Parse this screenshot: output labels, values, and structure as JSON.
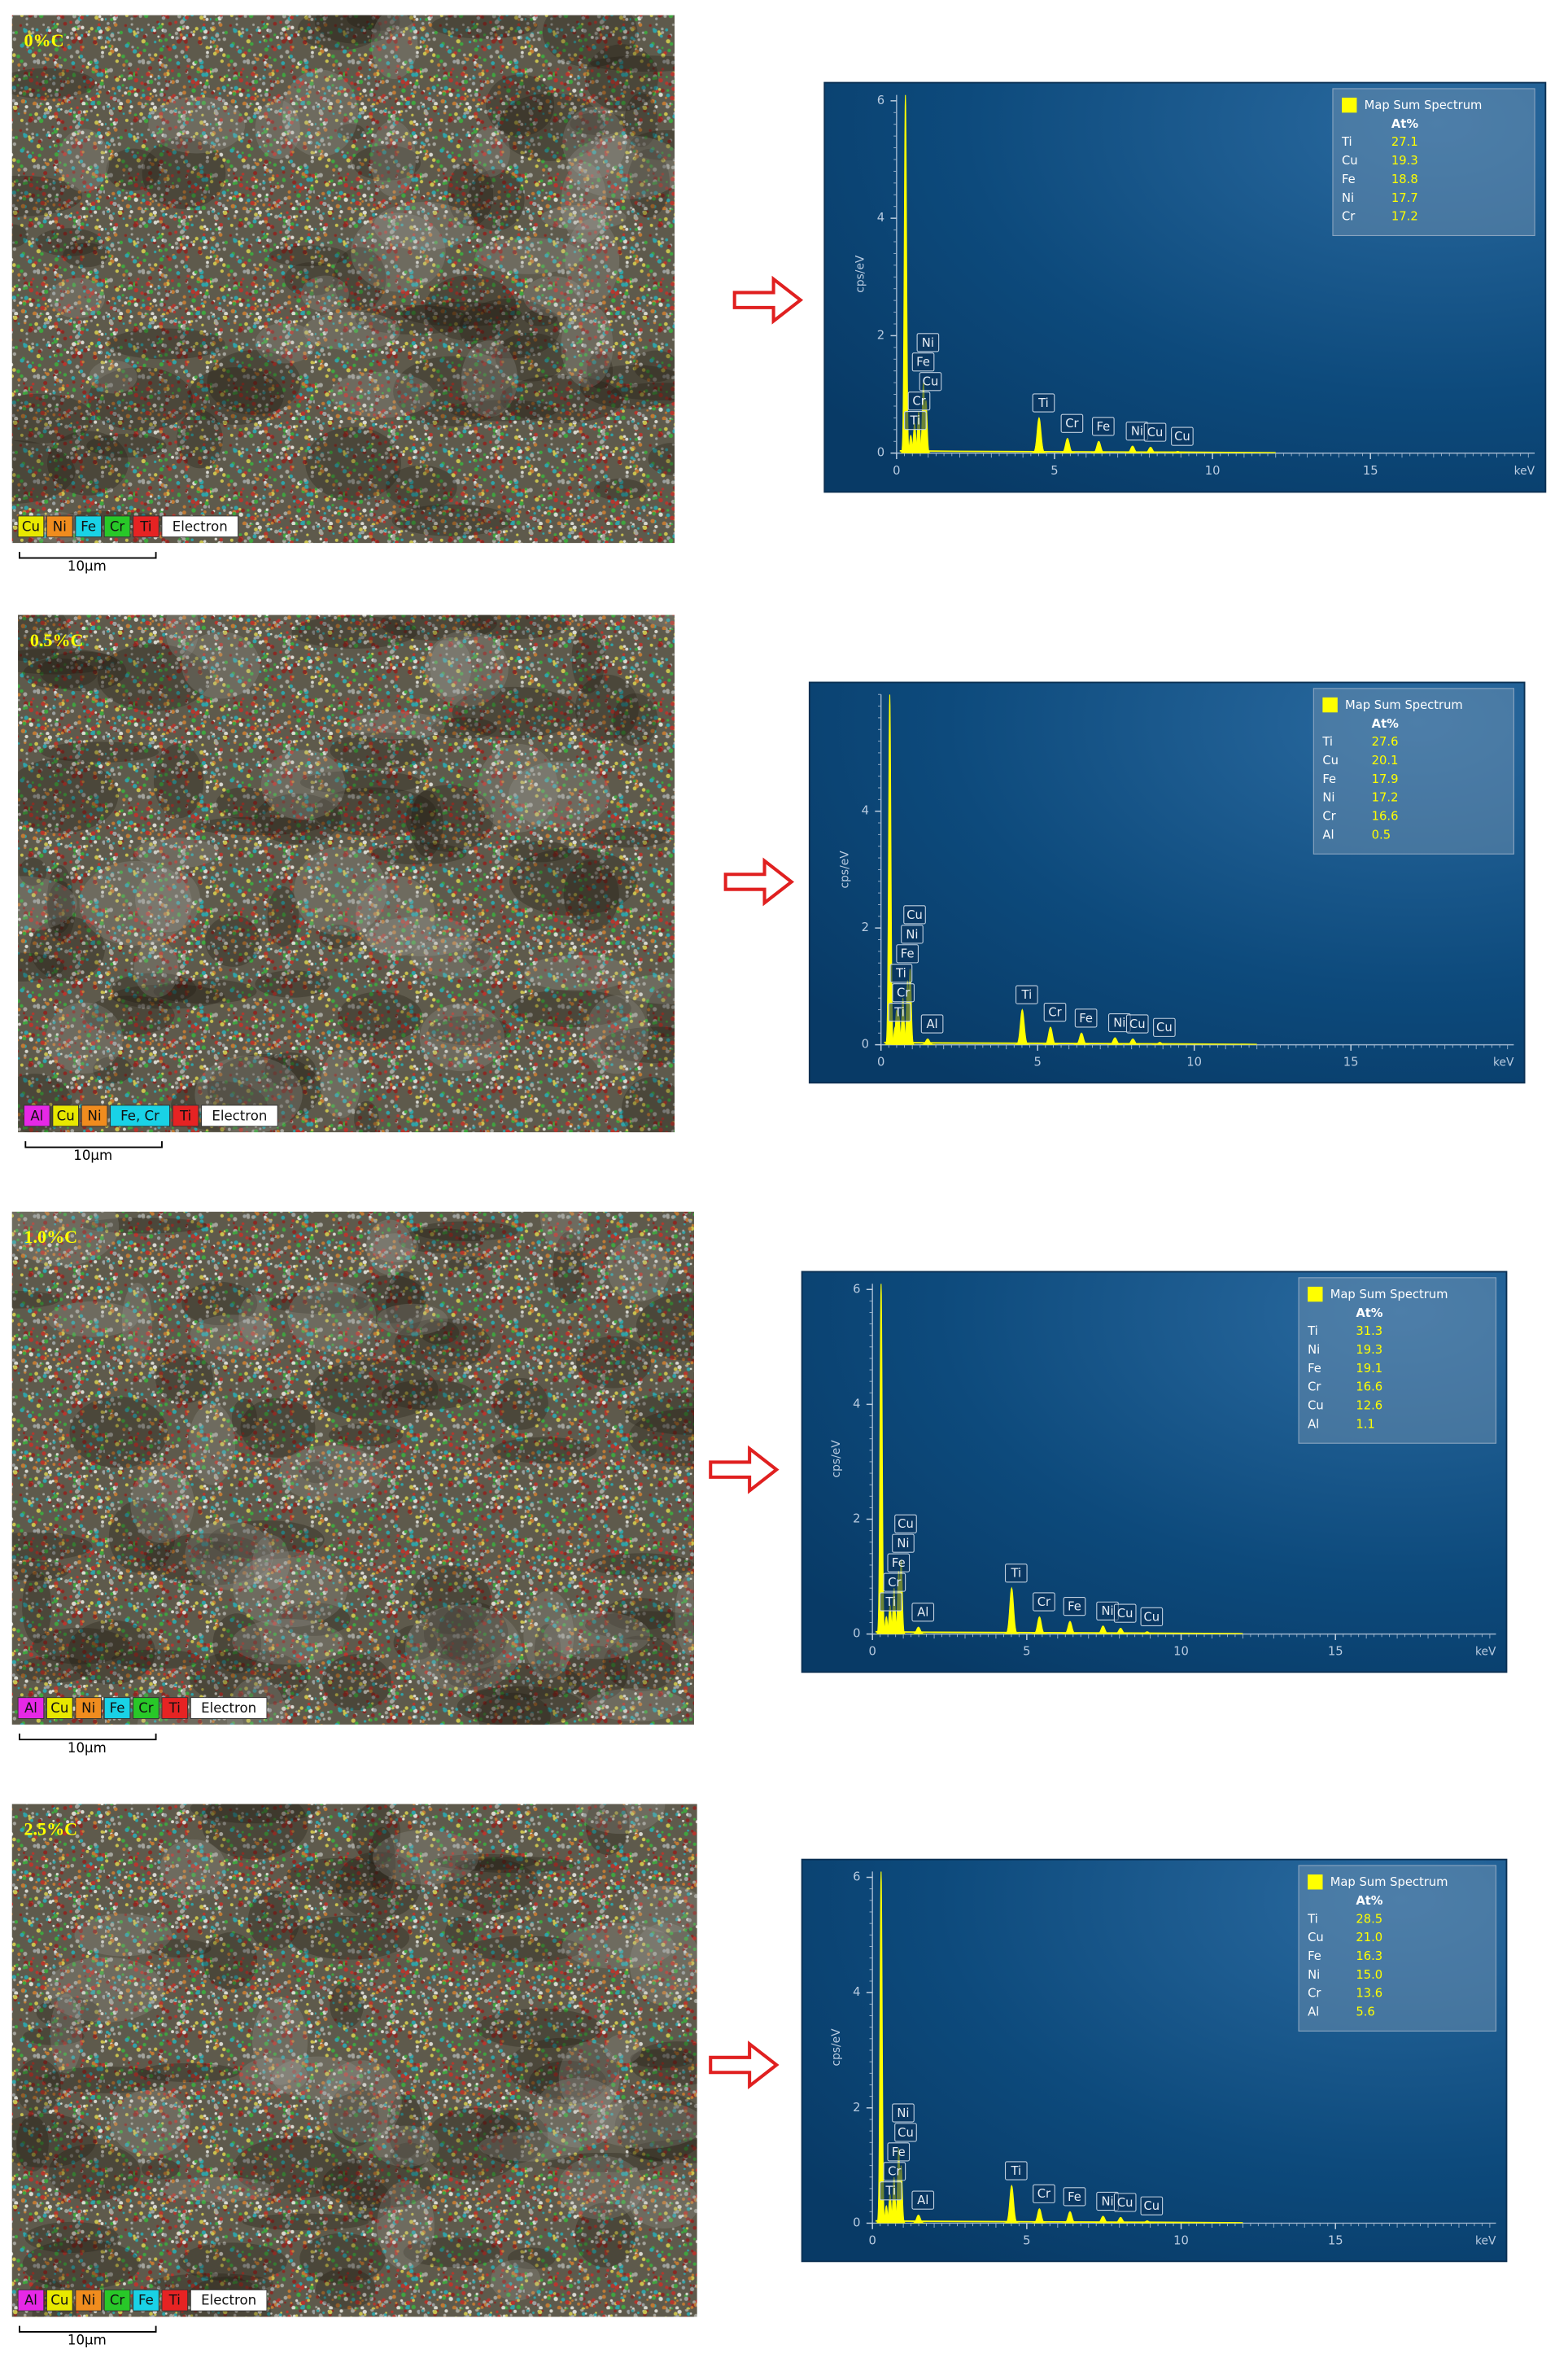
{
  "panels": [
    {
      "map": {
        "label": "0%C",
        "scale_bar": "10µm",
        "legend": [
          {
            "text": "Cu",
            "color": "#e8e800"
          },
          {
            "text": "Ni",
            "color": "#f08c1e"
          },
          {
            "text": "Fe",
            "color": "#19d2e6"
          },
          {
            "text": "Cr",
            "color": "#28c828"
          },
          {
            "text": "Ti",
            "color": "#e62323"
          },
          {
            "text": "Electron",
            "color": "#ffffff"
          }
        ]
      },
      "spectrum": {
        "ylabel": "cps/eV",
        "xlabel": "keV",
        "xlim": [
          0,
          20.2
        ],
        "ylim": [
          0,
          6.1
        ],
        "xticks": [
          0,
          5,
          10,
          15
        ],
        "yticks": [
          0,
          2,
          4,
          6
        ],
        "color": "#ffff00",
        "legend_title": "Map Sum Spectrum",
        "column_header": "At%",
        "rows": [
          [
            "Ti",
            "27.1"
          ],
          [
            "Cu",
            "19.3"
          ],
          [
            "Fe",
            "18.8"
          ],
          [
            "Ni",
            "17.7"
          ],
          [
            "Cr",
            "17.2"
          ]
        ],
        "peaks": [
          {
            "label": null,
            "x": 0.28,
            "height": 6.1
          },
          {
            "label": "Ti",
            "x": 0.45,
            "height": 0.3
          },
          {
            "label": "Cr",
            "x": 0.57,
            "height": 0.5
          },
          {
            "label": "Cu",
            "x": 0.93,
            "height": 0.9
          },
          {
            "label": "Fe",
            "x": 0.7,
            "height": 0.7
          },
          {
            "label": "Ni",
            "x": 0.85,
            "height": 1.2
          },
          {
            "label": "Ti",
            "x": 4.51,
            "height": 0.6
          },
          {
            "label": "Cr",
            "x": 5.41,
            "height": 0.25
          },
          {
            "label": "Fe",
            "x": 6.4,
            "height": 0.2
          },
          {
            "label": "Ni",
            "x": 7.47,
            "height": 0.12
          },
          {
            "label": "Cu",
            "x": 8.04,
            "height": 0.1
          },
          {
            "label": "Cu",
            "x": 8.9,
            "height": 0.03
          }
        ]
      }
    },
    {
      "map": {
        "label": "0.5%C",
        "scale_bar": "10µm",
        "legend": [
          {
            "text": "Al",
            "color": "#e628e6"
          },
          {
            "text": "Cu",
            "color": "#e8e800"
          },
          {
            "text": "Ni",
            "color": "#f08c1e"
          },
          {
            "text": "Fe, Cr",
            "color": "#19d2e6"
          },
          {
            "text": "Ti",
            "color": "#e62323"
          },
          {
            "text": "Electron",
            "color": "#ffffff"
          }
        ]
      },
      "spectrum": {
        "ylabel": "cps/eV",
        "xlabel": "keV",
        "xlim": [
          0,
          20.2
        ],
        "ylim": [
          0,
          6.0
        ],
        "xticks": [
          0,
          5,
          10,
          15
        ],
        "yticks": [
          0,
          2,
          4
        ],
        "color": "#ffff00",
        "legend_title": "Map Sum Spectrum",
        "column_header": "At%",
        "rows": [
          [
            "Ti",
            "27.6"
          ],
          [
            "Cu",
            "20.1"
          ],
          [
            "Fe",
            "17.9"
          ],
          [
            "Ni",
            "17.2"
          ],
          [
            "Cr",
            "16.6"
          ],
          [
            "Al",
            "0.5"
          ]
        ],
        "peaks": [
          {
            "label": null,
            "x": 0.28,
            "height": 6.0
          },
          {
            "label": "Ti",
            "x": 0.45,
            "height": 0.3
          },
          {
            "label": "Cr",
            "x": 0.57,
            "height": 0.5
          },
          {
            "label": "Ti",
            "x": 0.5,
            "height": 0.6
          },
          {
            "label": "Fe",
            "x": 0.7,
            "height": 0.8
          },
          {
            "label": "Ni",
            "x": 0.85,
            "height": 1.1
          },
          {
            "label": "Cu",
            "x": 0.93,
            "height": 1.3
          },
          {
            "label": "Al",
            "x": 1.49,
            "height": 0.1
          },
          {
            "label": "Ti",
            "x": 4.51,
            "height": 0.6
          },
          {
            "label": "Cr",
            "x": 5.41,
            "height": 0.3
          },
          {
            "label": "Fe",
            "x": 6.4,
            "height": 0.2
          },
          {
            "label": "Ni",
            "x": 7.47,
            "height": 0.12
          },
          {
            "label": "Cu",
            "x": 8.04,
            "height": 0.1
          },
          {
            "label": "Cu",
            "x": 8.9,
            "height": 0.04
          }
        ]
      }
    },
    {
      "map": {
        "label": "1.0%C",
        "scale_bar": "10µm",
        "legend": [
          {
            "text": "Al",
            "color": "#e628e6"
          },
          {
            "text": "Cu",
            "color": "#e8e800"
          },
          {
            "text": "Ni",
            "color": "#f08c1e"
          },
          {
            "text": "Fe",
            "color": "#19d2e6"
          },
          {
            "text": "Cr",
            "color": "#28c828"
          },
          {
            "text": "Ti",
            "color": "#e62323"
          },
          {
            "text": "Electron",
            "color": "#ffffff"
          }
        ]
      },
      "spectrum": {
        "ylabel": "cps/eV",
        "xlabel": "keV",
        "xlim": [
          0,
          20.2
        ],
        "ylim": [
          0,
          6.1
        ],
        "xticks": [
          0,
          5,
          10,
          15
        ],
        "yticks": [
          0,
          2,
          4,
          6
        ],
        "color": "#ffff00",
        "legend_title": "Map Sum Spectrum",
        "column_header": "At%",
        "rows": [
          [
            "Ti",
            "31.3"
          ],
          [
            "Ni",
            "19.3"
          ],
          [
            "Fe",
            "19.1"
          ],
          [
            "Cr",
            "16.6"
          ],
          [
            "Cu",
            "12.6"
          ],
          [
            "Al",
            "1.1"
          ]
        ],
        "peaks": [
          {
            "label": null,
            "x": 0.28,
            "height": 6.1
          },
          {
            "label": "Ti",
            "x": 0.45,
            "height": 0.3
          },
          {
            "label": "Cr",
            "x": 0.57,
            "height": 0.5
          },
          {
            "label": "Fe",
            "x": 0.7,
            "height": 0.8
          },
          {
            "label": "Ni",
            "x": 0.85,
            "height": 1.1
          },
          {
            "label": "Cu",
            "x": 0.93,
            "height": 1.3
          },
          {
            "label": "Al",
            "x": 1.49,
            "height": 0.12
          },
          {
            "label": "Ti",
            "x": 4.51,
            "height": 0.8
          },
          {
            "label": "Cr",
            "x": 5.41,
            "height": 0.3
          },
          {
            "label": "Fe",
            "x": 6.4,
            "height": 0.22
          },
          {
            "label": "Ni",
            "x": 7.47,
            "height": 0.14
          },
          {
            "label": "Cu",
            "x": 8.04,
            "height": 0.1
          },
          {
            "label": "Cu",
            "x": 8.9,
            "height": 0.04
          }
        ]
      }
    },
    {
      "map": {
        "label": "2.5%C",
        "scale_bar": "10µm",
        "legend": [
          {
            "text": "Al",
            "color": "#e628e6"
          },
          {
            "text": "Cu",
            "color": "#e8e800"
          },
          {
            "text": "Ni",
            "color": "#f08c1e"
          },
          {
            "text": "Cr",
            "color": "#28c828"
          },
          {
            "text": "Fe",
            "color": "#19d2e6"
          },
          {
            "text": "Ti",
            "color": "#e62323"
          },
          {
            "text": "Electron",
            "color": "#ffffff"
          }
        ]
      },
      "spectrum": {
        "ylabel": "cps/eV",
        "xlabel": "keV",
        "xlim": [
          0,
          20.2
        ],
        "ylim": [
          0,
          6.1
        ],
        "xticks": [
          0,
          5,
          10,
          15
        ],
        "yticks": [
          0,
          2,
          4,
          6
        ],
        "color": "#ffff00",
        "legend_title": "Map Sum Spectrum",
        "column_header": "At%",
        "rows": [
          [
            "Ti",
            "28.5"
          ],
          [
            "Cu",
            "21.0"
          ],
          [
            "Fe",
            "16.3"
          ],
          [
            "Ni",
            "15.0"
          ],
          [
            "Cr",
            "13.6"
          ],
          [
            "Al",
            "5.6"
          ]
        ],
        "peaks": [
          {
            "label": null,
            "x": 0.28,
            "height": 6.1
          },
          {
            "label": "Ti",
            "x": 0.45,
            "height": 0.3
          },
          {
            "label": "Cr",
            "x": 0.57,
            "height": 0.5
          },
          {
            "label": "Fe",
            "x": 0.7,
            "height": 0.8
          },
          {
            "label": "Cu",
            "x": 0.93,
            "height": 1.0
          },
          {
            "label": "Ni",
            "x": 0.85,
            "height": 1.3
          },
          {
            "label": "Al",
            "x": 1.49,
            "height": 0.14
          },
          {
            "label": "Ti",
            "x": 4.51,
            "height": 0.65
          },
          {
            "label": "Cr",
            "x": 5.41,
            "height": 0.25
          },
          {
            "label": "Fe",
            "x": 6.4,
            "height": 0.2
          },
          {
            "label": "Ni",
            "x": 7.47,
            "height": 0.12
          },
          {
            "label": "Cu",
            "x": 8.04,
            "height": 0.1
          },
          {
            "label": "Cu",
            "x": 8.9,
            "height": 0.04
          }
        ]
      }
    }
  ]
}
